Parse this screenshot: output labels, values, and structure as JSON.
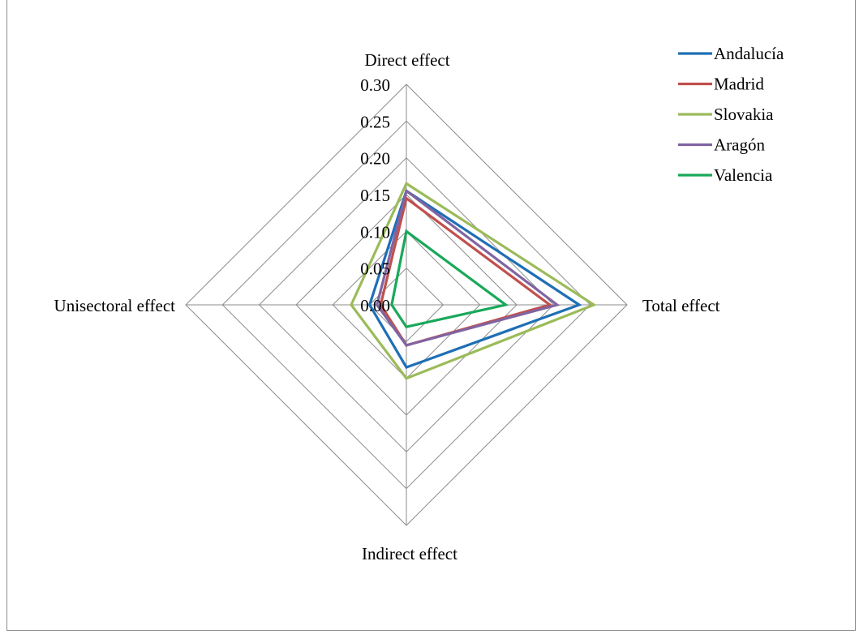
{
  "chart_data": {
    "type": "radar",
    "axes": [
      "Direct effect",
      "Total effect",
      "Indirect effect",
      "Unisectoral effect"
    ],
    "rlim": [
      0,
      0.3
    ],
    "ticks": [
      "0.00",
      "0.05",
      "0.10",
      "0.15",
      "0.20",
      "0.25",
      "0.30"
    ],
    "tick_values": [
      0,
      0.05,
      0.1,
      0.15,
      0.2,
      0.25,
      0.3
    ],
    "grid": true,
    "legend_position": "top-right",
    "series": [
      {
        "name": "Andalucía",
        "color": "#1f6fb5",
        "values": [
          0.155,
          0.235,
          0.085,
          0.05
        ]
      },
      {
        "name": "Madrid",
        "color": "#c0504d",
        "values": [
          0.145,
          0.195,
          0.055,
          0.035
        ]
      },
      {
        "name": "Slovakia",
        "color": "#9bbb59",
        "values": [
          0.165,
          0.255,
          0.1,
          0.075
        ]
      },
      {
        "name": "Aragón",
        "color": "#8064a2",
        "values": [
          0.155,
          0.205,
          0.055,
          0.04
        ]
      },
      {
        "name": "Valencia",
        "color": "#1aa85b",
        "values": [
          0.1,
          0.135,
          0.03,
          0.02
        ]
      }
    ]
  }
}
